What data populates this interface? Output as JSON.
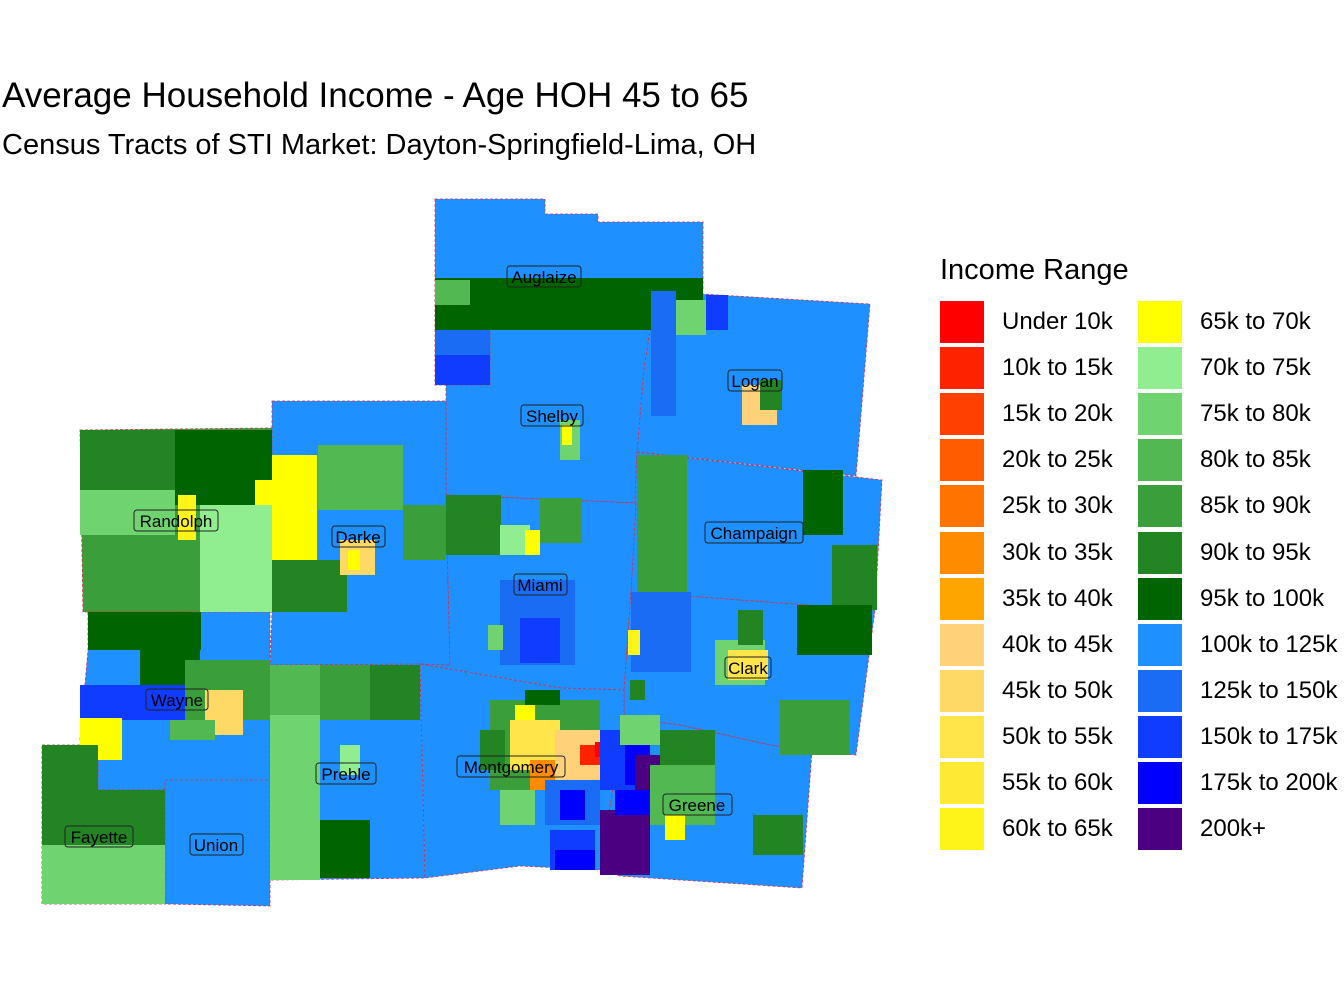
{
  "title": "Average Household Income - Age HOH 45 to 65",
  "subtitle": "Census Tracts of STI Market: Dayton-Springfield-Lima, OH",
  "legend": {
    "title": "Income Range",
    "items": [
      {
        "label": "Under 10k",
        "color": "#ff0000"
      },
      {
        "label": "10k to 15k",
        "color": "#ff2200"
      },
      {
        "label": "15k to 20k",
        "color": "#ff4000"
      },
      {
        "label": "20k to 25k",
        "color": "#ff5c00"
      },
      {
        "label": "25k to 30k",
        "color": "#ff7400"
      },
      {
        "label": "30k to 35k",
        "color": "#ff8c00"
      },
      {
        "label": "35k to 40k",
        "color": "#ffa500"
      },
      {
        "label": "40k to 45k",
        "color": "#ffd27a"
      },
      {
        "label": "45k to 50k",
        "color": "#ffd966"
      },
      {
        "label": "50k to 55k",
        "color": "#ffe44a"
      },
      {
        "label": "55k to 60k",
        "color": "#ffea33"
      },
      {
        "label": "60k to 65k",
        "color": "#fff41a"
      },
      {
        "label": "65k to 70k",
        "color": "#ffff00"
      },
      {
        "label": "70k to 75k",
        "color": "#90ee90"
      },
      {
        "label": "75k to 80k",
        "color": "#6fd36f"
      },
      {
        "label": "80k to 85k",
        "color": "#52b852"
      },
      {
        "label": "85k to 90k",
        "color": "#3a9e3a"
      },
      {
        "label": "90k to 95k",
        "color": "#228422"
      },
      {
        "label": "95k to 100k",
        "color": "#006400"
      },
      {
        "label": "100k to 125k",
        "color": "#1e90ff"
      },
      {
        "label": "125k to 150k",
        "color": "#1a6cf5"
      },
      {
        "label": "150k to 175k",
        "color": "#0f3cff"
      },
      {
        "label": "175k to 200k",
        "color": "#0000ff"
      },
      {
        "label": "200k+",
        "color": "#4b0082"
      }
    ]
  },
  "counties": [
    {
      "name": "Auglaize",
      "fill": "#1e90ff"
    },
    {
      "name": "Logan",
      "fill": "#1e90ff"
    },
    {
      "name": "Shelby",
      "fill": "#1e90ff"
    },
    {
      "name": "Randolph",
      "fill": "#3a9e3a"
    },
    {
      "name": "Darke",
      "fill": "#1e90ff"
    },
    {
      "name": "Champaign",
      "fill": "#1e90ff"
    },
    {
      "name": "Miami",
      "fill": "#1e90ff"
    },
    {
      "name": "Clark",
      "fill": "#1e90ff"
    },
    {
      "name": "Wayne",
      "fill": "#1e90ff"
    },
    {
      "name": "Preble",
      "fill": "#1e90ff"
    },
    {
      "name": "Montgomery",
      "fill": "#1e90ff"
    },
    {
      "name": "Greene",
      "fill": "#1e90ff"
    },
    {
      "name": "Fayette",
      "fill": "#228422"
    },
    {
      "name": "Union",
      "fill": "#1e90ff"
    }
  ]
}
